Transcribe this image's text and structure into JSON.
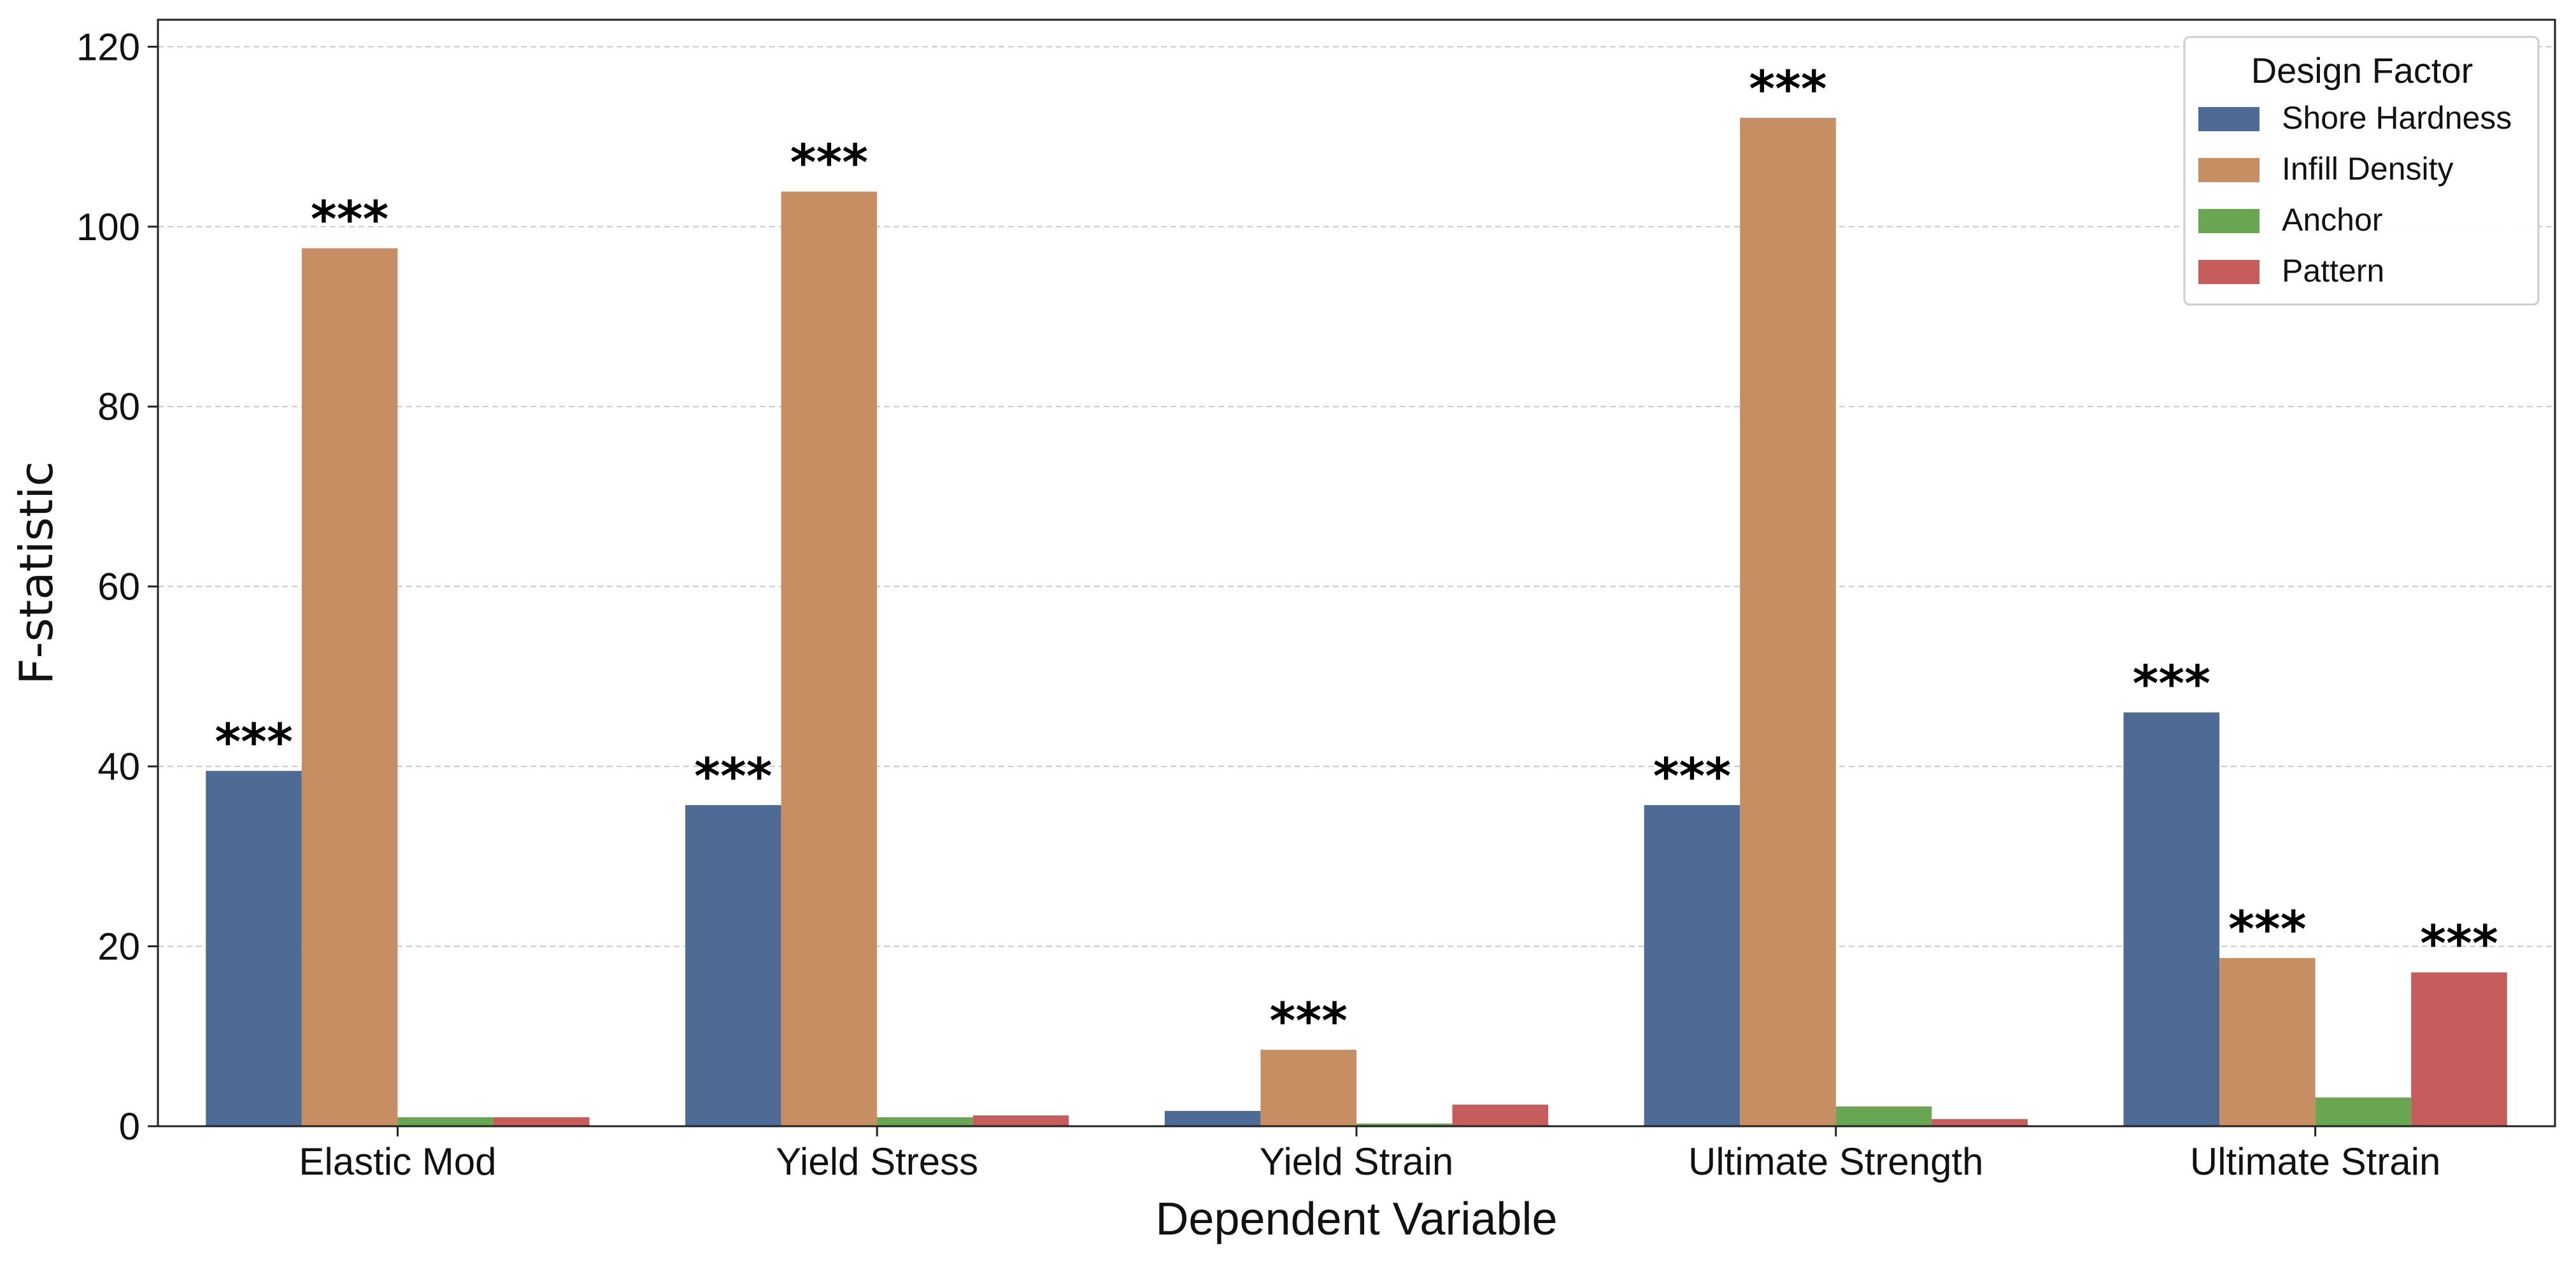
{
  "chart_data": {
    "type": "bar",
    "xlabel": "Dependent Variable",
    "ylabel": "F-statistic",
    "ylim": [
      0,
      123
    ],
    "yticks": [
      0,
      20,
      40,
      60,
      80,
      100,
      120
    ],
    "grid": "horizontal dashed",
    "categories": [
      "Elastic Mod",
      "Yield Stress",
      "Yield Strain",
      "Ultimate Strength",
      "Ultimate Strain"
    ],
    "legend": {
      "title": "Design Factor",
      "position": "top-right"
    },
    "series": [
      {
        "name": "Shore Hardness",
        "color": "#4e6b96",
        "values": [
          39.5,
          35.7,
          1.7,
          35.7,
          46.0
        ],
        "significance": [
          "***",
          "***",
          "",
          "***",
          "***"
        ]
      },
      {
        "name": "Infill Density",
        "color": "#c68e62",
        "values": [
          97.6,
          103.9,
          8.5,
          112.1,
          18.7
        ],
        "significance": [
          "***",
          "***",
          "***",
          "***",
          "***"
        ]
      },
      {
        "name": "Anchor",
        "color": "#69a651",
        "values": [
          1.0,
          1.0,
          0.3,
          2.2,
          3.2
        ],
        "significance": [
          "",
          "",
          "",
          "",
          ""
        ]
      },
      {
        "name": "Pattern",
        "color": "#c65c5c",
        "values": [
          1.0,
          1.2,
          2.4,
          0.8,
          17.1
        ],
        "significance": [
          "",
          "",
          "",
          "",
          "***"
        ]
      }
    ]
  }
}
